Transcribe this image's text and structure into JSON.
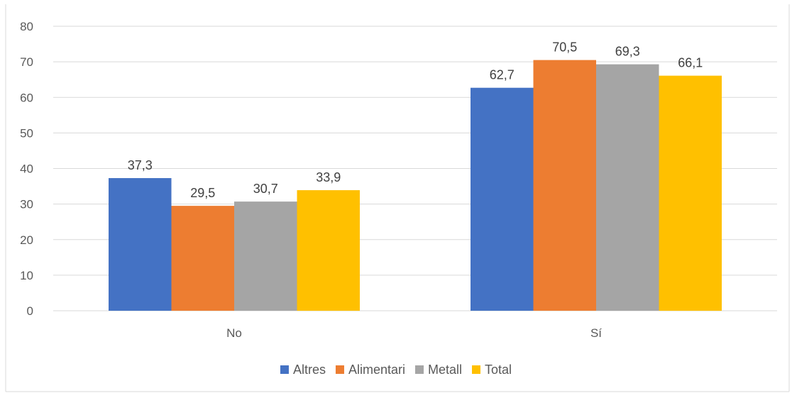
{
  "chart_data": {
    "type": "bar",
    "categories": [
      "No",
      "Sí"
    ],
    "series": [
      {
        "name": "Altres",
        "values": [
          37.3,
          62.7
        ],
        "labels": [
          "37,3",
          "62,7"
        ],
        "color": "#4472C4"
      },
      {
        "name": "Alimentari",
        "values": [
          29.5,
          70.5
        ],
        "labels": [
          "29,5",
          "70,5"
        ],
        "color": "#ED7D31"
      },
      {
        "name": "Metall",
        "values": [
          30.7,
          69.3
        ],
        "labels": [
          "30,7",
          "69,3"
        ],
        "color": "#A5A5A5"
      },
      {
        "name": "Total",
        "values": [
          33.9,
          66.1
        ],
        "labels": [
          "33,9",
          "66,1"
        ],
        "color": "#FFC000"
      }
    ],
    "yticks": [
      "0",
      "10",
      "20",
      "30",
      "40",
      "50",
      "60",
      "70",
      "80"
    ],
    "ylim": [
      0,
      80
    ],
    "grid": true,
    "legend_position": "bottom"
  }
}
